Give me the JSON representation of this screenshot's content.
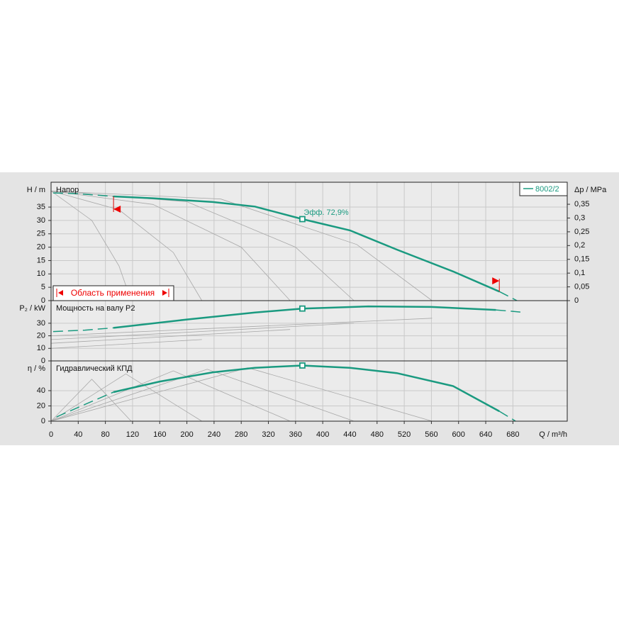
{
  "chart_data": [
    {
      "type": "line",
      "title": "Напор",
      "ylabel": "H / m",
      "y2label": "Δp / MPa",
      "xlim": [
        0,
        760
      ],
      "ylim": [
        0,
        44.3
      ],
      "yticks": [
        0,
        5,
        10,
        15,
        20,
        25,
        30,
        35
      ],
      "y2lim": [
        0,
        0.43
      ],
      "y2ticks": [
        0,
        {
          "value": 0.05,
          "label": "0,05"
        },
        {
          "value": 0.1,
          "label": "0,1"
        },
        {
          "value": 0.15,
          "label": "0,15"
        },
        {
          "value": 0.2,
          "label": "0,2"
        },
        {
          "value": 0.25,
          "label": "0,25"
        },
        {
          "value": 0.3,
          "label": "0,3"
        },
        {
          "value": 0.35,
          "label": "0,35"
        }
      ],
      "series": [
        {
          "name": "8002/2",
          "color": "#1a9a80",
          "x": [
            92,
            150,
            238,
            300,
            370,
            440,
            509,
            592,
            660
          ],
          "values": [
            39,
            38.3,
            36.9,
            35.2,
            30.5,
            26.3,
            19.1,
            10.9,
            3.4
          ]
        }
      ],
      "extensions": [
        {
          "x": [
            3,
            40,
            92
          ],
          "values": [
            40.3,
            40,
            39
          ]
        },
        {
          "x": [
            660,
            686
          ],
          "values": [
            3.4,
            0
          ]
        }
      ],
      "reference_curves": [
        {
          "x": [
            0,
            60,
            100,
            118
          ],
          "values": [
            41,
            30,
            13,
            0
          ]
        },
        {
          "x": [
            0,
            100,
            180,
            222
          ],
          "values": [
            41,
            34,
            18,
            0
          ]
        },
        {
          "x": [
            0,
            150,
            280,
            352
          ],
          "values": [
            41,
            36,
            20,
            0
          ]
        },
        {
          "x": [
            0,
            200,
            360,
            446
          ],
          "values": [
            41,
            37,
            20,
            0
          ]
        },
        {
          "x": [
            0,
            250,
            450,
            561
          ],
          "values": [
            41,
            38,
            21,
            0
          ]
        }
      ],
      "operating_point": {
        "x": 370,
        "y": 30.5
      },
      "annotation": "Эфф.  72,9%",
      "range_limits": [
        92,
        660
      ],
      "range_label": "Область применения"
    },
    {
      "type": "line",
      "title": "Мощность на валу P2",
      "ylabel": "P₂ / kW",
      "xlim": [
        0,
        760
      ],
      "ylim": [
        0,
        48
      ],
      "yticks": [
        0,
        10,
        20,
        30
      ],
      "series": [
        {
          "color": "#1a9a80",
          "x": [
            92,
            200,
            300,
            370,
            467,
            560,
            655
          ],
          "values": [
            26.3,
            33,
            38.5,
            41.7,
            43.4,
            43,
            40.6
          ]
        }
      ],
      "extensions": [
        {
          "x": [
            3,
            50,
            92
          ],
          "values": [
            23.4,
            24.5,
            26.3
          ]
        },
        {
          "x": [
            655,
            691
          ],
          "values": [
            40.6,
            38.9
          ]
        }
      ],
      "reference_curves": [
        {
          "x": [
            0,
            222
          ],
          "values": [
            10,
            17
          ]
        },
        {
          "x": [
            0,
            352
          ],
          "values": [
            14,
            25
          ]
        },
        {
          "x": [
            0,
            446
          ],
          "values": [
            17,
            30
          ]
        },
        {
          "x": [
            0,
            561
          ],
          "values": [
            20,
            34
          ]
        }
      ],
      "operating_point": {
        "x": 370,
        "y": 41.7
      }
    },
    {
      "type": "line",
      "title": "Гидравлический КПД",
      "ylabel": "η / %",
      "xlabel": "Q / m³/h",
      "xlim": [
        0,
        760
      ],
      "ylim": [
        0,
        79
      ],
      "yticks": [
        0,
        20,
        40
      ],
      "xticks": [
        0,
        40,
        80,
        120,
        160,
        200,
        240,
        280,
        320,
        360,
        400,
        440,
        480,
        520,
        560,
        600,
        640,
        680
      ],
      "series": [
        {
          "color": "#1a9a80",
          "x": [
            92,
            160,
            238,
            300,
            370,
            440,
            509,
            592,
            660
          ],
          "values": [
            38.1,
            52,
            64,
            70,
            73,
            70,
            63,
            46,
            13
          ]
        }
      ],
      "extensions": [
        {
          "x": [
            8,
            50,
            92
          ],
          "values": [
            5.6,
            22,
            38.1
          ]
        },
        {
          "x": [
            660,
            684
          ],
          "values": [
            13,
            0
          ]
        }
      ],
      "reference_curves": [
        {
          "x": [
            0,
            60,
            118
          ],
          "values": [
            0,
            55,
            0
          ]
        },
        {
          "x": [
            0,
            110,
            222
          ],
          "values": [
            0,
            62,
            0
          ]
        },
        {
          "x": [
            0,
            180,
            352
          ],
          "values": [
            0,
            66,
            0
          ]
        },
        {
          "x": [
            0,
            230,
            446
          ],
          "values": [
            0,
            68,
            0
          ]
        },
        {
          "x": [
            0,
            290,
            561
          ],
          "values": [
            0,
            70,
            0
          ]
        }
      ],
      "operating_point": {
        "x": 370,
        "y": 73
      }
    }
  ]
}
